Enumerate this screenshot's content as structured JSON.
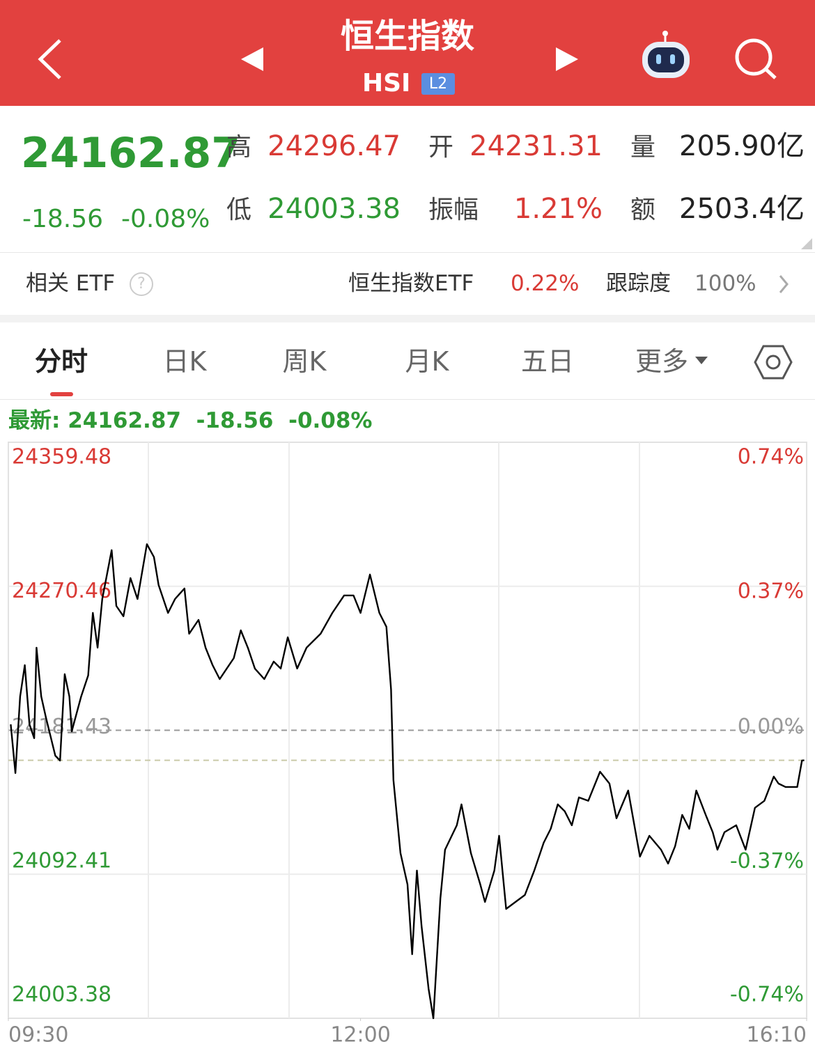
{
  "header": {
    "title": "恒生指数",
    "code": "HSI",
    "badge": "L2"
  },
  "quote": {
    "price": "24162.87",
    "change": "-18.56",
    "change_pct": "-0.08%",
    "stats": [
      {
        "label": "高",
        "value": "24296.47",
        "color": "#d93a35"
      },
      {
        "label": "开",
        "value": "24231.31",
        "color": "#d93a35"
      },
      {
        "label": "量",
        "value": "205.90亿",
        "color": "#222222"
      },
      {
        "label": "低",
        "value": "24003.38",
        "color": "#2f9a35"
      },
      {
        "label": "振幅",
        "value": "1.21%",
        "color": "#d93a35"
      },
      {
        "label": "额",
        "value": "2503.4亿",
        "color": "#222222"
      }
    ]
  },
  "etf": {
    "label": "相关 ETF",
    "name": "恒生指数ETF",
    "change": "0.22%",
    "tracking_label": "跟踪度",
    "tracking": "100%"
  },
  "tabs": [
    "分时",
    "日K",
    "周K",
    "月K",
    "五日",
    "更多"
  ],
  "latest": {
    "label": "最新:",
    "price": "24162.87",
    "change": "-18.56",
    "change_pct": "-0.08%"
  },
  "chart_data": {
    "type": "line",
    "color": "#000000",
    "x": [
      1,
      3,
      5,
      7,
      9,
      11,
      12,
      14,
      16,
      20,
      22,
      24,
      26,
      27,
      31,
      34,
      36,
      38,
      40,
      44,
      46,
      49,
      52,
      55,
      59,
      62,
      64,
      68,
      71,
      75,
      77,
      81,
      84,
      87,
      90,
      93,
      96,
      99,
      102,
      105,
      109,
      113,
      116,
      119,
      123,
      127,
      133,
      138,
      143,
      147,
      150,
      154,
      158,
      161,
      163,
      164,
      167,
      170,
      172,
      174,
      176,
      179,
      181,
      184,
      186,
      191,
      193,
      197,
      201,
      203,
      207,
      209,
      212,
      216,
      220,
      224,
      228,
      231,
      234,
      237,
      240,
      243,
      247,
      252,
      256,
      259,
      264,
      269,
      273,
      278,
      281,
      284,
      287,
      290,
      293,
      297,
      300,
      302,
      305,
      310,
      314,
      318,
      322,
      326,
      328,
      331,
      336,
      338,
      339
    ],
    "values": [
      24185.1,
      24155.0,
      24202.3,
      24221.7,
      24185.1,
      24176.5,
      24232.5,
      24202.3,
      24189.4,
      24165.7,
      24162.7,
      24216.1,
      24202.3,
      24180.8,
      24202.3,
      24215.3,
      24254.0,
      24232.5,
      24262.6,
      24292.8,
      24258.3,
      24251.9,
      24275.5,
      24262.6,
      24296.47,
      24288.5,
      24271.2,
      24254.0,
      24262.6,
      24269.1,
      24241.1,
      24249.7,
      24232.5,
      24221.7,
      24213.1,
      24219.6,
      24226.0,
      24243.2,
      24232.5,
      24219.6,
      24213.1,
      24223.9,
      24219.6,
      24238.9,
      24219.6,
      24232.5,
      24241.1,
      24254.0,
      24264.8,
      24264.8,
      24254.0,
      24277.7,
      24254.0,
      24245.4,
      24206.6,
      24150.7,
      24105.5,
      24086.1,
      24043.0,
      24094.7,
      24060.3,
      24021.5,
      24003.38,
      24077.5,
      24107.6,
      24122.7,
      24135.6,
      24105.5,
      24086.1,
      24075.3,
      24094.7,
      24116.2,
      24071.0,
      24075.3,
      24079.6,
      24094.7,
      24111.9,
      24120.5,
      24135.6,
      24131.3,
      24122.7,
      24139.9,
      24137.8,
      24155.8,
      24148.5,
      24127.0,
      24144.2,
      24103.3,
      24116.2,
      24107.6,
      24099.0,
      24109.8,
      24129.1,
      24120.5,
      24144.2,
      24129.1,
      24118.4,
      24107.6,
      24118.4,
      24122.7,
      24107.6,
      24133.5,
      24137.8,
      24152.8,
      24148.5,
      24146.4,
      24146.4,
      24162.7,
      24162.87
    ],
    "xlim": [
      0,
      340
    ],
    "xticks": [
      {
        "value": 0,
        "label": "09:30"
      },
      {
        "value": 150,
        "label": "12:00"
      },
      {
        "value": 340,
        "label": "16:10"
      }
    ],
    "ylim": [
      24003.38,
      24359.48
    ],
    "yticks": [
      24359.48,
      24270.46,
      24181.43,
      24092.41,
      24003.38
    ],
    "y2lim": [
      -0.74,
      0.74
    ],
    "y2ticks": [
      {
        "value": 0.74,
        "label": "0.74%"
      },
      {
        "value": 0.37,
        "label": "0.37%"
      },
      {
        "value": 0,
        "label": "0.00%"
      },
      {
        "value": -0.37,
        "label": "-0.37%"
      },
      {
        "value": -0.74,
        "label": "-0.74%"
      }
    ],
    "grid": true
  }
}
